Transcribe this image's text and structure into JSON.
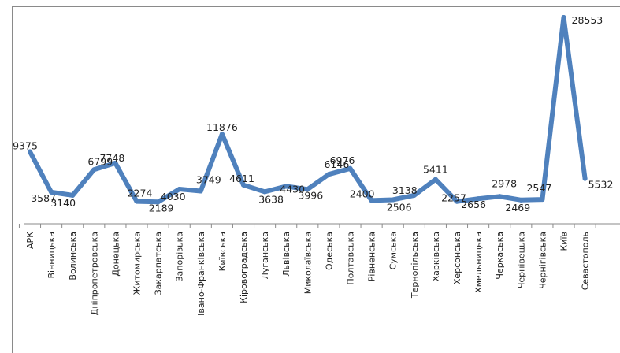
{
  "chart_data": {
    "type": "line",
    "title": "",
    "xlabel": "",
    "ylabel": "",
    "categories": [
      "АРК",
      "Вінницька",
      "Волинська",
      "Дніпропетровська",
      "Донецька",
      "Житомирська",
      "Закарпатська",
      "Запорізька",
      "Івано-Франківська",
      "Київська",
      "Кіровоградська",
      "Луганська",
      "Львівська",
      "Миколаївська",
      "Одеська",
      "Полтавська",
      "Рівненська",
      "Сумська",
      "Тернопільська",
      "Харківська",
      "Херсонська",
      "Хмельницька",
      "Черкаська",
      "Чернівецька",
      "Чернігівська",
      "Київ",
      "Севастополь"
    ],
    "values": [
      9375,
      3587,
      3140,
      6799,
      7748,
      2274,
      2189,
      4030,
      3749,
      11876,
      4611,
      3638,
      4430,
      3996,
      6146,
      6976,
      2400,
      2506,
      3138,
      5411,
      2257,
      2656,
      2978,
      2469,
      2547,
      28553,
      5532
    ],
    "data_labels": [
      "9375",
      "3587",
      "3140",
      "6799",
      "7748",
      "2274",
      "2189",
      "4030",
      "3749",
      "11876",
      "4611",
      "3638",
      "4430",
      "3996",
      "6146",
      "6976",
      "2400",
      "2506",
      "3138",
      "5411",
      "2257",
      "2656",
      "2978",
      "2469",
      "2547",
      "28553",
      "5532"
    ],
    "series_color": "#4f81bd",
    "ylim": [
      0,
      30000
    ],
    "grid": false,
    "legend": "none"
  }
}
